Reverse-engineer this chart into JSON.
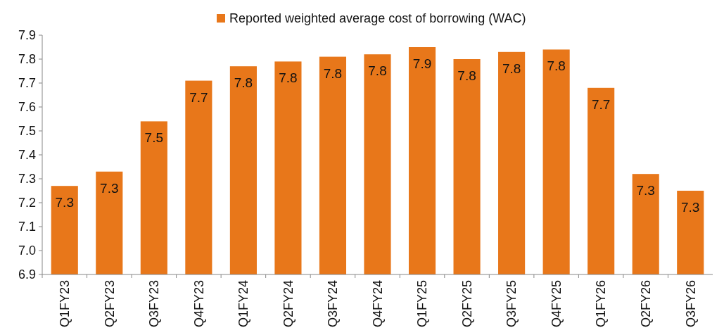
{
  "chart_data": {
    "type": "bar",
    "categories": [
      "Q1FY23",
      "Q2FY23",
      "Q3FY23",
      "Q4FY23",
      "Q1FY24",
      "Q2FY24",
      "Q3FY24",
      "Q4FY24",
      "Q1FY25",
      "Q2FY25",
      "Q3FY25",
      "Q4FY25",
      "Q1FY26",
      "Q2FY26",
      "Q3FY26"
    ],
    "series": [
      {
        "name": "Reported weighted average cost of borrowing (WAC)",
        "color": "#e8771a",
        "values": [
          7.27,
          7.33,
          7.54,
          7.71,
          7.77,
          7.79,
          7.81,
          7.82,
          7.85,
          7.8,
          7.83,
          7.84,
          7.68,
          7.32,
          7.25
        ],
        "value_labels": [
          "7.3",
          "7.3",
          "7.5",
          "7.7",
          "7.8",
          "7.8",
          "7.8",
          "7.8",
          "7.9",
          "7.8",
          "7.8",
          "7.8",
          "7.7",
          "7.3",
          "7.3"
        ]
      }
    ],
    "ylim": [
      6.9,
      7.9
    ],
    "yticks": [
      {
        "value": 6.9,
        "label": "6.9"
      },
      {
        "value": 7.0,
        "label": "7.0"
      },
      {
        "value": 7.1,
        "label": "7.1"
      },
      {
        "value": 7.2,
        "label": "7.2"
      },
      {
        "value": 7.3,
        "label": "7.3"
      },
      {
        "value": 7.4,
        "label": "7.4"
      },
      {
        "value": 7.5,
        "label": "7.5"
      },
      {
        "value": 7.6,
        "label": "7.6"
      },
      {
        "value": 7.7,
        "label": "7.7"
      },
      {
        "value": 7.8,
        "label": "7.8"
      },
      {
        "value": 7.9,
        "label": "7.9"
      }
    ],
    "legend": "top",
    "grid": false
  }
}
